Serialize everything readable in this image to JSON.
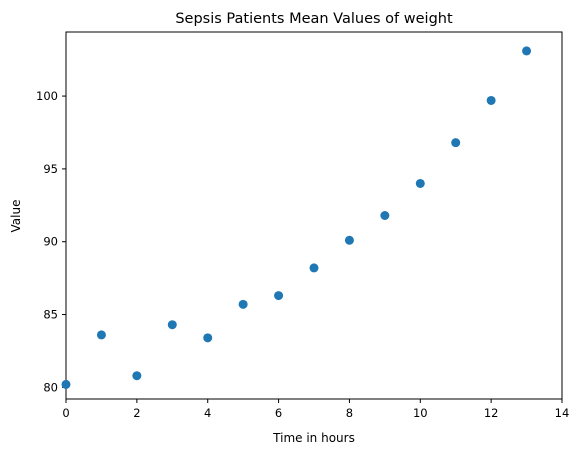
{
  "chart_data": {
    "type": "scatter",
    "title": "Sepsis Patients Mean Values of weight",
    "xlabel": "Time in hours",
    "ylabel": "Value",
    "xlim": [
      0,
      14
    ],
    "ylim": [
      79.2,
      104.4
    ],
    "xticks": [
      0,
      2,
      4,
      6,
      8,
      10,
      12,
      14
    ],
    "yticks": [
      80,
      85,
      90,
      95,
      100
    ],
    "grid": false,
    "marker_color": "#1f77b4",
    "series": [
      {
        "x": [
          0,
          1,
          2,
          3,
          4,
          5,
          6,
          7,
          8,
          9,
          10,
          11,
          12,
          13
        ],
        "y": [
          80.2,
          83.6,
          80.8,
          84.3,
          83.4,
          85.7,
          86.3,
          88.2,
          90.1,
          91.8,
          94.0,
          96.8,
          99.7,
          103.1
        ]
      }
    ]
  }
}
